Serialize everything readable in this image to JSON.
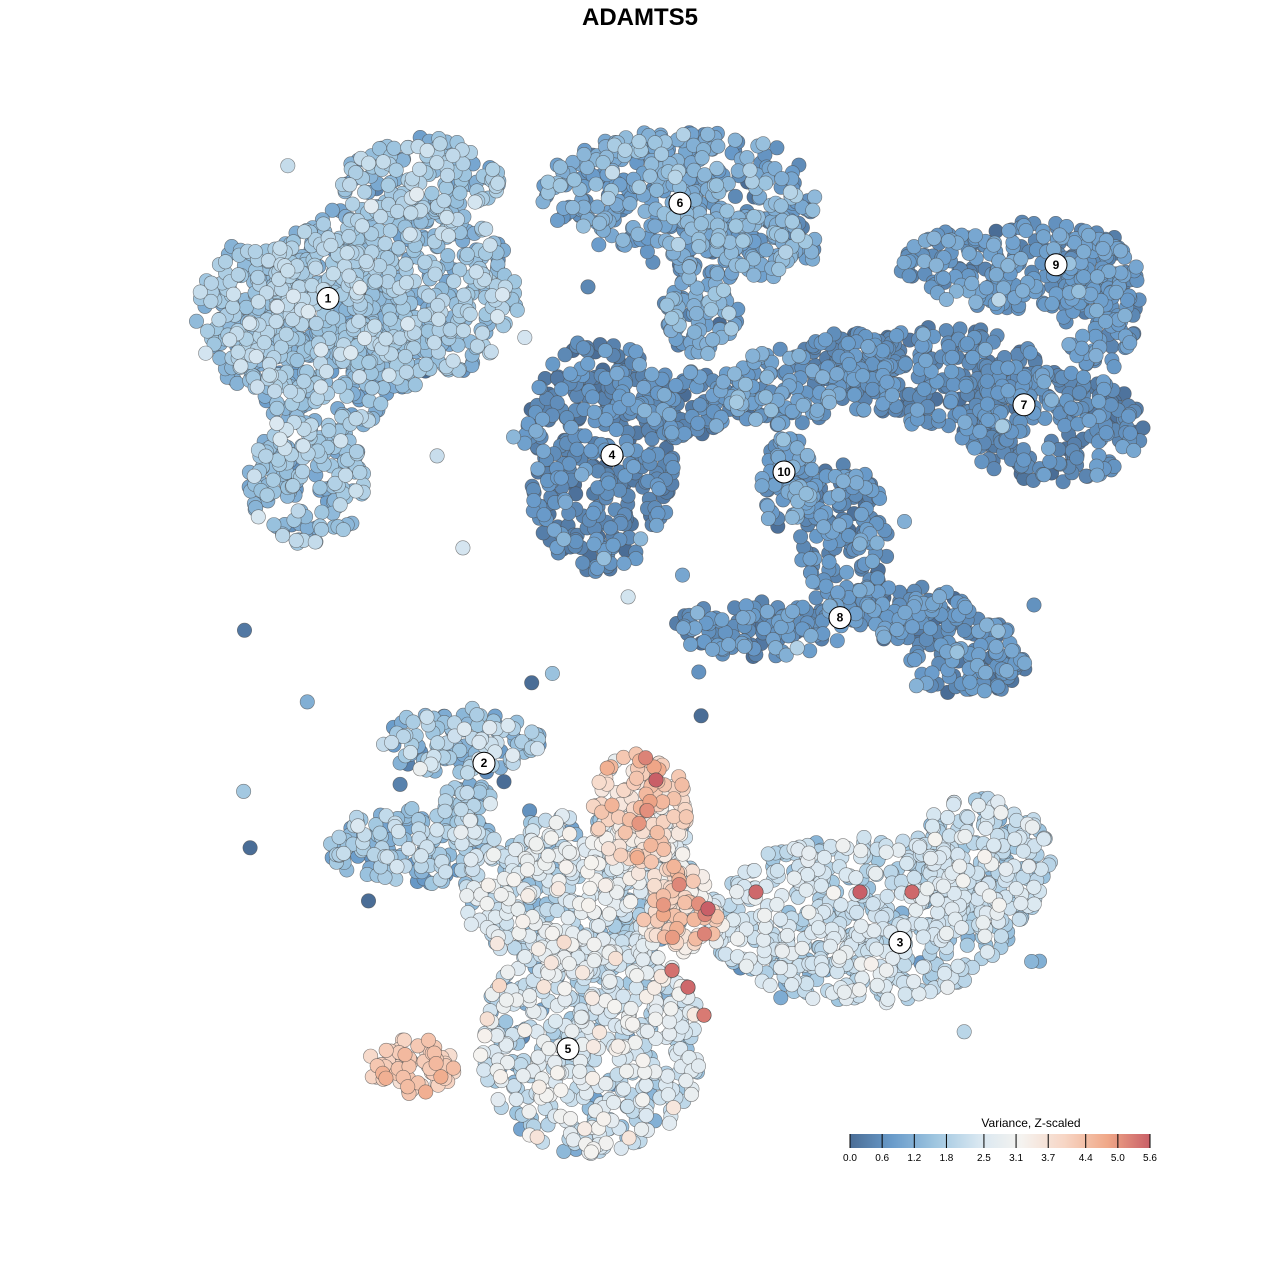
{
  "chart_data": {
    "type": "scatter",
    "title": "ADAMTS5",
    "xlabel": "",
    "ylabel": "",
    "grid": false,
    "legend": {
      "title": "Variance, Z-scaled",
      "placement": "bottom-right",
      "ticks": [
        0.0,
        0.6,
        1.2,
        1.8,
        2.5,
        3.1,
        3.7,
        4.4,
        5.0,
        5.6
      ],
      "tick_labels": [
        "0.0",
        "0.6",
        "1.2",
        "1.8",
        "2.5",
        "3.1",
        "3.7",
        "4.4",
        "5.0",
        "5.6"
      ],
      "range": [
        0.0,
        5.6
      ],
      "colors": [
        "#4a6d96",
        "#6a9ccb",
        "#9fc6e0",
        "#d8e7f1",
        "#f5f3f0",
        "#f7d6c5",
        "#f0a888",
        "#c95f67"
      ]
    },
    "clusters": [
      {
        "label": "1",
        "x": -0.78,
        "y": 0.61,
        "mean": 1.5,
        "spread": 0.6,
        "regions": [
          [
            -0.62,
            0.62,
            0.32,
            0.17
          ],
          [
            -0.78,
            0.55,
            0.22,
            0.19
          ],
          [
            -0.98,
            0.58,
            0.13,
            0.13
          ],
          [
            -0.83,
            0.28,
            0.15,
            0.11
          ],
          [
            -0.55,
            0.82,
            0.2,
            0.08
          ]
        ]
      },
      {
        "label": "2",
        "x": -0.39,
        "y": -0.22,
        "mean": 1.6,
        "spread": 0.8,
        "regions": [
          [
            -0.45,
            -0.18,
            0.2,
            0.06
          ],
          [
            -0.58,
            -0.37,
            0.2,
            0.07
          ],
          [
            -0.43,
            -0.31,
            0.07,
            0.06
          ]
        ]
      },
      {
        "label": "3",
        "x": 0.65,
        "y": -0.54,
        "mean": 2.1,
        "spread": 0.7,
        "regions": [
          [
            0.55,
            -0.5,
            0.38,
            0.15
          ],
          [
            0.85,
            -0.4,
            0.18,
            0.12
          ]
        ]
      },
      {
        "label": "4",
        "x": -0.07,
        "y": 0.33,
        "mean": 0.5,
        "spread": 0.5,
        "regions": [
          [
            -0.1,
            0.33,
            0.19,
            0.21
          ],
          [
            0.11,
            0.42,
            0.12,
            0.06
          ]
        ]
      },
      {
        "label": "5",
        "x": -0.18,
        "y": -0.73,
        "mean": 2.3,
        "spread": 0.9,
        "regions": [
          [
            -0.12,
            -0.72,
            0.28,
            0.2
          ],
          [
            -0.15,
            -0.45,
            0.3,
            0.14
          ],
          [
            0.0,
            -0.38,
            0.15,
            0.08
          ]
        ]
      },
      {
        "label": "6",
        "x": 0.1,
        "y": 0.78,
        "mean": 1.0,
        "spread": 0.6,
        "regions": [
          [
            0.1,
            0.8,
            0.35,
            0.11
          ],
          [
            0.25,
            0.7,
            0.2,
            0.06
          ],
          [
            0.15,
            0.58,
            0.1,
            0.07
          ]
        ]
      },
      {
        "label": "7",
        "x": 0.96,
        "y": 0.42,
        "mean": 0.5,
        "spread": 0.4,
        "regions": [
          [
            0.75,
            0.47,
            0.28,
            0.09
          ],
          [
            1.03,
            0.38,
            0.23,
            0.1
          ],
          [
            0.52,
            0.5,
            0.12,
            0.05
          ]
        ]
      },
      {
        "label": "8",
        "x": 0.5,
        "y": 0.04,
        "mean": 0.6,
        "spread": 0.5,
        "regions": [
          [
            0.51,
            0.18,
            0.11,
            0.14
          ],
          [
            0.82,
            -0.03,
            0.15,
            0.07
          ],
          [
            0.3,
            0.02,
            0.22,
            0.05
          ],
          [
            0.65,
            0.05,
            0.18,
            0.05
          ]
        ]
      },
      {
        "label": "9",
        "x": 1.04,
        "y": 0.67,
        "mean": 0.7,
        "spread": 0.4,
        "regions": [
          [
            0.95,
            0.67,
            0.3,
            0.08
          ],
          [
            1.15,
            0.6,
            0.1,
            0.12
          ]
        ]
      },
      {
        "label": "10",
        "x": 0.36,
        "y": 0.3,
        "mean": 0.8,
        "spread": 0.5,
        "regions": [
          [
            0.37,
            0.28,
            0.07,
            0.09
          ],
          [
            0.35,
            0.45,
            0.15,
            0.07
          ]
        ]
      },
      {
        "label": "",
        "x": -0.57,
        "y": -0.75,
        "mean": 4.1,
        "spread": 0.4,
        "regions": [
          [
            -0.57,
            -0.76,
            0.11,
            0.05
          ]
        ]
      },
      {
        "label": "",
        "x": -0.02,
        "y": -0.28,
        "mean": 3.8,
        "spread": 0.9,
        "regions": [
          [
            0.0,
            -0.3,
            0.12,
            0.1
          ],
          [
            0.1,
            -0.48,
            0.1,
            0.08
          ]
        ]
      }
    ],
    "highlight_points": [
      {
        "x": 0.04,
        "y": -0.25,
        "value": 5.6
      },
      {
        "x": 0.17,
        "y": -0.48,
        "value": 5.6
      },
      {
        "x": 0.12,
        "y": -0.62,
        "value": 5.5
      },
      {
        "x": 0.08,
        "y": -0.59,
        "value": 5.4
      },
      {
        "x": 0.29,
        "y": -0.45,
        "value": 5.5
      },
      {
        "x": 0.55,
        "y": -0.45,
        "value": 5.6
      },
      {
        "x": 0.68,
        "y": -0.45,
        "value": 5.5
      },
      {
        "x": 0.16,
        "y": -0.67,
        "value": 5.3
      }
    ],
    "xlim": [
      -1.5,
      1.5
    ],
    "ylim": [
      -1.5,
      1.5
    ]
  }
}
